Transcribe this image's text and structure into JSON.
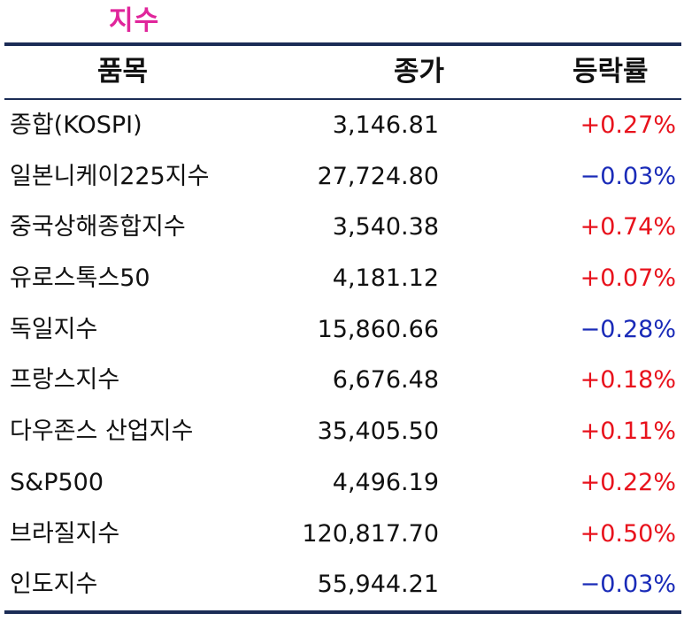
{
  "title": "지수",
  "colors": {
    "title": "#e0259b",
    "rule": "#1b2c56",
    "up": "#e8121c",
    "down": "#1a2bb8"
  },
  "columns": {
    "name": "품목",
    "close": "종가",
    "change": "등락률"
  },
  "rows": [
    {
      "name": "종합(KOSPI)",
      "close": "3,146.81",
      "change": "+0.27%",
      "direction": "up"
    },
    {
      "name": "일본니케이225지수",
      "close": "27,724.80",
      "change": "−0.03%",
      "direction": "down"
    },
    {
      "name": "중국상해종합지수",
      "close": "3,540.38",
      "change": "+0.74%",
      "direction": "up"
    },
    {
      "name": "유로스톡스50",
      "close": "4,181.12",
      "change": "+0.07%",
      "direction": "up"
    },
    {
      "name": "독일지수",
      "close": "15,860.66",
      "change": "−0.28%",
      "direction": "down"
    },
    {
      "name": "프랑스지수",
      "close": "6,676.48",
      "change": "+0.18%",
      "direction": "up"
    },
    {
      "name": "다우존스 산업지수",
      "close": "35,405.50",
      "change": "+0.11%",
      "direction": "up"
    },
    {
      "name": "S&P500",
      "close": "4,496.19",
      "change": "+0.22%",
      "direction": "up"
    },
    {
      "name": "브라질지수",
      "close": "120,817.70",
      "change": "+0.50%",
      "direction": "up"
    },
    {
      "name": "인도지수",
      "close": "55,944.21",
      "change": "−0.03%",
      "direction": "down"
    }
  ]
}
